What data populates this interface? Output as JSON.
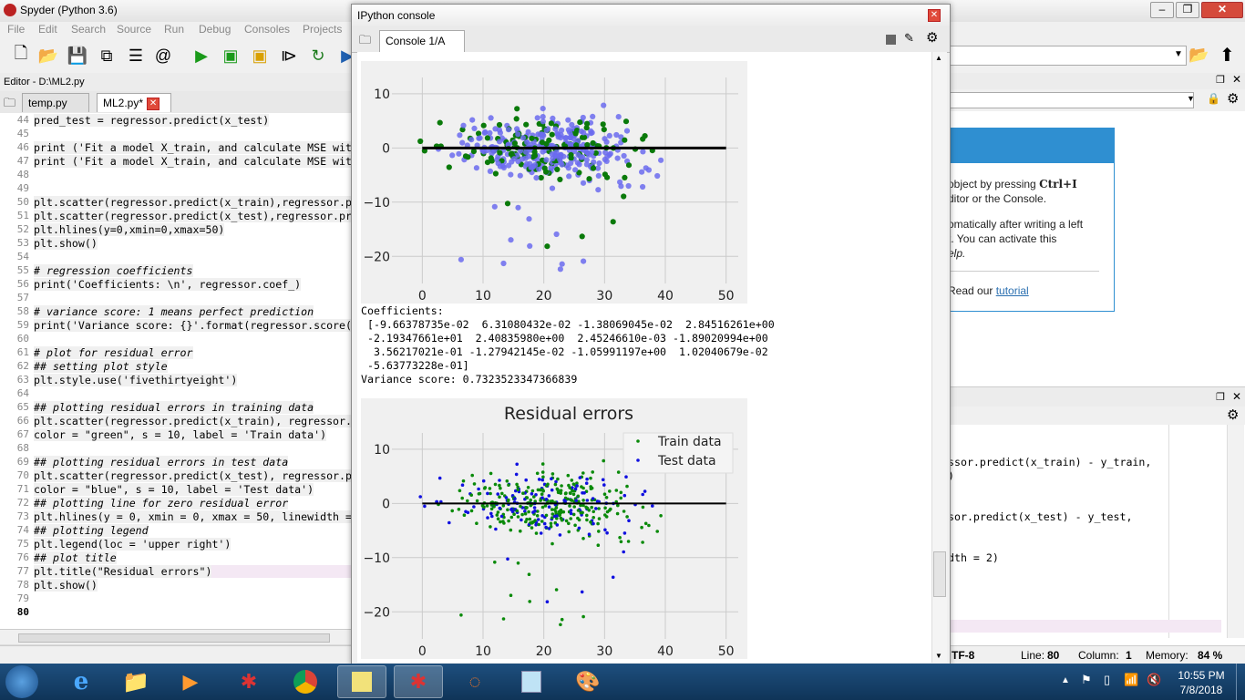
{
  "main_window": {
    "title": "Spyder (Python 3.6)",
    "menu": [
      "File",
      "Edit",
      "Search",
      "Source",
      "Run",
      "Debug",
      "Consoles",
      "Projects"
    ]
  },
  "editor": {
    "header": "Editor - D:\\ML2.py",
    "tabs": [
      {
        "label": "temp.py"
      },
      {
        "label": "ML2.py*"
      }
    ],
    "lines": [
      {
        "n": "44",
        "text": "pred_test = regressor.predict(x_test)"
      },
      {
        "n": "45",
        "text": ""
      },
      {
        "n": "46",
        "text": "print ('Fit a model X_train, and calculate MSE wit"
      },
      {
        "n": "47",
        "text": "print ('Fit a model X_train, and calculate MSE wit"
      },
      {
        "n": "48",
        "text": ""
      },
      {
        "n": "49",
        "text": ""
      },
      {
        "n": "50",
        "text": "plt.scatter(regressor.predict(x_train),regressor.p"
      },
      {
        "n": "51",
        "text": "plt.scatter(regressor.predict(x_test),regressor.pr"
      },
      {
        "n": "52",
        "text": "plt.hlines(y=0,xmin=0,xmax=50)"
      },
      {
        "n": "53",
        "text": "plt.show()"
      },
      {
        "n": "54",
        "text": ""
      },
      {
        "n": "55",
        "text": "# regression coefficients"
      },
      {
        "n": "56",
        "text": "print('Coefficients: \\n', regressor.coef_)"
      },
      {
        "n": "57",
        "text": ""
      },
      {
        "n": "58",
        "text": "# variance score: 1 means perfect prediction"
      },
      {
        "n": "59",
        "text": "print('Variance score: {}'.format(regressor.score("
      },
      {
        "n": "60",
        "text": ""
      },
      {
        "n": "61",
        "text": "# plot for residual error"
      },
      {
        "n": "62",
        "text": "## setting plot style"
      },
      {
        "n": "63",
        "text": "plt.style.use('fivethirtyeight')"
      },
      {
        "n": "64",
        "text": ""
      },
      {
        "n": "65",
        "text": "## plotting residual errors in training data"
      },
      {
        "n": "66",
        "text": "plt.scatter(regressor.predict(x_train), regressor."
      },
      {
        "n": "67",
        "text": "color = \"green\", s = 10, label = 'Train data')"
      },
      {
        "n": "68",
        "text": ""
      },
      {
        "n": "69",
        "text": "## plotting residual errors in test data"
      },
      {
        "n": "70",
        "text": "plt.scatter(regressor.predict(x_test), regressor.p"
      },
      {
        "n": "71",
        "text": "color = \"blue\", s = 10, label = 'Test data')"
      },
      {
        "n": "72",
        "text": "## plotting line for zero residual error"
      },
      {
        "n": "73",
        "text": "plt.hlines(y = 0, xmin = 0, xmax = 50, linewidth ="
      },
      {
        "n": "74",
        "text": "## plotting legend"
      },
      {
        "n": "75",
        "text": "plt.legend(loc = 'upper right')"
      },
      {
        "n": "76",
        "text": "## plot title"
      },
      {
        "n": "77",
        "text": "plt.title(\"Residual errors\")"
      },
      {
        "n": "78",
        "text": "plt.show()"
      },
      {
        "n": "79",
        "text": ""
      },
      {
        "n": "80",
        "text": ""
      }
    ]
  },
  "help": {
    "line1a": "object by pressing ",
    "line1b": "Ctrl+I",
    "line2": "ditor or the Console.",
    "line3": "omatically after writing a left",
    "line4": "t. You can activate this",
    "line5": "elp.",
    "line6a": "Read our ",
    "line6b": "tutorial"
  },
  "history": {
    "lines": [
      "ssor.predict(x_train) - y_train,",
      ")",
      "sor.predict(x_test) - y_test,",
      "dth = 2)"
    ]
  },
  "status": {
    "encoding": "TF-8",
    "line_label": "Line:",
    "line_value": "80",
    "col_label": "Column:",
    "col_value": "1",
    "mem_label": "Memory:",
    "mem_value": "84 %"
  },
  "ipython": {
    "title": "IPython console",
    "tab": "Console 1/A",
    "coef_header": "Coefficients:",
    "coef_lines": [
      " [-9.66378735e-02  6.31080432e-02 -1.38069045e-02  2.84516261e+00",
      " -2.19347661e+01  2.40835980e+00  2.45246610e-03 -1.89020994e+00",
      "  3.56217021e-01 -1.27942145e-02 -1.05991197e+00  1.02040679e-02",
      " -5.63773228e-01]"
    ],
    "variance": "Variance score: 0.7323523347366839"
  },
  "chart_data": [
    {
      "type": "scatter",
      "title": "",
      "xlim": [
        -5,
        52
      ],
      "ylim": [
        -25,
        13
      ],
      "xticks": [
        "0",
        "10",
        "20",
        "30",
        "40",
        "50"
      ],
      "yticks": [
        "10",
        "0",
        "−10",
        "−20"
      ],
      "hline": {
        "y": 0,
        "xmin": 0,
        "xmax": 50
      },
      "series": [
        {
          "color": "#6b6bef",
          "role": "train"
        },
        {
          "color": "#0a7a0a",
          "role": "test"
        }
      ]
    },
    {
      "type": "scatter",
      "title": "Residual errors",
      "xlim": [
        -5,
        52
      ],
      "ylim": [
        -25,
        13
      ],
      "xticks": [
        "0",
        "10",
        "20",
        "30",
        "40",
        "50"
      ],
      "yticks": [
        "10",
        "0",
        "−10",
        "−20"
      ],
      "hline": {
        "y": 0,
        "xmin": 0,
        "xmax": 50
      },
      "legend": "upper right",
      "series": [
        {
          "name": "Train data",
          "color": "#0a8a0a"
        },
        {
          "name": "Test data",
          "color": "#1010e0"
        }
      ]
    }
  ],
  "taskbar": {
    "time": "10:55 PM",
    "date": "7/8/2018"
  }
}
